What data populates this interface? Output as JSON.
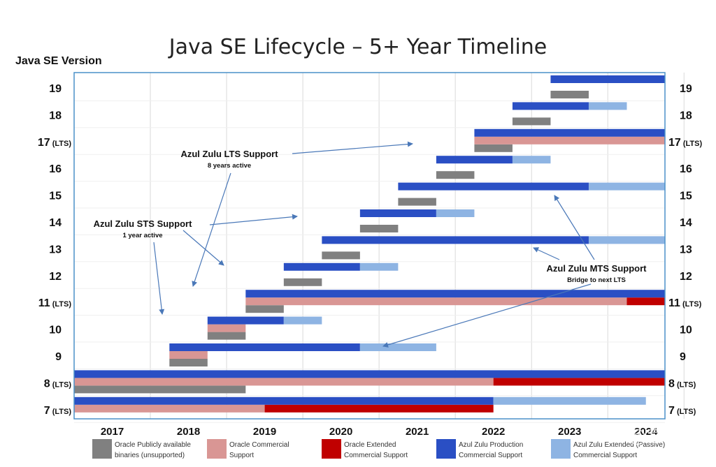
{
  "chart_data": {
    "type": "bar",
    "title": "Java SE Lifecycle – 5+ Year Timeline",
    "ylabel": "Java SE Version",
    "xlim": [
      2016.5,
      2024.25
    ],
    "years": [
      "2017",
      "2018",
      "2019",
      "2020",
      "2021",
      "2022",
      "2023",
      "2024"
    ],
    "versions": [
      {
        "label": "19",
        "suffix": "",
        "segments": [
          {
            "type": "zulu",
            "start": 2022.75,
            "end": 2024.25
          },
          {
            "type": "oracle_public",
            "start": 2022.75,
            "end": 2023.25
          }
        ]
      },
      {
        "label": "18",
        "suffix": "",
        "segments": [
          {
            "type": "zulu",
            "start": 2022.25,
            "end": 2023.25
          },
          {
            "type": "zulu_ext",
            "start": 2023.25,
            "end": 2023.75
          },
          {
            "type": "oracle_public",
            "start": 2022.25,
            "end": 2022.75
          }
        ]
      },
      {
        "label": "17",
        "suffix": "(LTS)",
        "segments": [
          {
            "type": "zulu",
            "start": 2021.75,
            "end": 2024.25
          },
          {
            "type": "oracle_comm",
            "start": 2021.75,
            "end": 2024.25
          },
          {
            "type": "oracle_public",
            "start": 2021.75,
            "end": 2022.25
          }
        ]
      },
      {
        "label": "16",
        "suffix": "",
        "segments": [
          {
            "type": "zulu",
            "start": 2021.25,
            "end": 2022.25
          },
          {
            "type": "zulu_ext",
            "start": 2022.25,
            "end": 2022.75
          },
          {
            "type": "oracle_public",
            "start": 2021.25,
            "end": 2021.75
          }
        ]
      },
      {
        "label": "15",
        "suffix": "",
        "segments": [
          {
            "type": "zulu",
            "start": 2020.75,
            "end": 2023.25
          },
          {
            "type": "zulu_ext",
            "start": 2023.25,
            "end": 2024.25
          },
          {
            "type": "oracle_public",
            "start": 2020.75,
            "end": 2021.25
          }
        ]
      },
      {
        "label": "14",
        "suffix": "",
        "segments": [
          {
            "type": "zulu",
            "start": 2020.25,
            "end": 2021.25
          },
          {
            "type": "zulu_ext",
            "start": 2021.25,
            "end": 2021.75
          },
          {
            "type": "oracle_public",
            "start": 2020.25,
            "end": 2020.75
          }
        ]
      },
      {
        "label": "13",
        "suffix": "",
        "segments": [
          {
            "type": "zulu",
            "start": 2019.75,
            "end": 2023.25
          },
          {
            "type": "zulu_ext",
            "start": 2023.25,
            "end": 2024.25
          },
          {
            "type": "oracle_public",
            "start": 2019.75,
            "end": 2020.25
          }
        ]
      },
      {
        "label": "12",
        "suffix": "",
        "segments": [
          {
            "type": "zulu",
            "start": 2019.25,
            "end": 2020.25
          },
          {
            "type": "zulu_ext",
            "start": 2020.25,
            "end": 2020.75
          },
          {
            "type": "oracle_public",
            "start": 2019.25,
            "end": 2019.75
          }
        ]
      },
      {
        "label": "11",
        "suffix": "(LTS)",
        "segments": [
          {
            "type": "zulu",
            "start": 2018.75,
            "end": 2024.25
          },
          {
            "type": "oracle_comm",
            "start": 2018.75,
            "end": 2023.75
          },
          {
            "type": "oracle_ext",
            "start": 2023.75,
            "end": 2024.25
          },
          {
            "type": "oracle_public",
            "start": 2018.75,
            "end": 2019.25
          }
        ]
      },
      {
        "label": "10",
        "suffix": "",
        "segments": [
          {
            "type": "zulu",
            "start": 2018.25,
            "end": 2019.25
          },
          {
            "type": "zulu_ext",
            "start": 2019.25,
            "end": 2019.75
          },
          {
            "type": "oracle_comm",
            "start": 2018.25,
            "end": 2018.75
          },
          {
            "type": "oracle_public",
            "start": 2018.25,
            "end": 2018.75
          }
        ]
      },
      {
        "label": "9",
        "suffix": "",
        "segments": [
          {
            "type": "zulu",
            "start": 2017.75,
            "end": 2020.25
          },
          {
            "type": "zulu_ext",
            "start": 2020.25,
            "end": 2021.25
          },
          {
            "type": "oracle_comm",
            "start": 2017.75,
            "end": 2018.25
          },
          {
            "type": "oracle_public",
            "start": 2017.75,
            "end": 2018.25
          }
        ]
      },
      {
        "label": "8",
        "suffix": "(LTS)",
        "segments": [
          {
            "type": "zulu",
            "start": 2016.5,
            "end": 2024.25
          },
          {
            "type": "oracle_comm",
            "start": 2016.5,
            "end": 2022.0
          },
          {
            "type": "oracle_ext",
            "start": 2022.0,
            "end": 2024.25
          },
          {
            "type": "oracle_public",
            "start": 2016.5,
            "end": 2018.75
          }
        ]
      },
      {
        "label": "7",
        "suffix": "(LTS)",
        "segments": [
          {
            "type": "zulu",
            "start": 2016.5,
            "end": 2022.0
          },
          {
            "type": "zulu_ext",
            "start": 2022.0,
            "end": 2024.0
          },
          {
            "type": "oracle_comm",
            "start": 2016.5,
            "end": 2019.0
          },
          {
            "type": "oracle_ext",
            "start": 2019.0,
            "end": 2022.0
          }
        ]
      }
    ],
    "colors": {
      "oracle_public": "#808080",
      "oracle_comm": "#d99694",
      "oracle_ext": "#c00000",
      "zulu": "#2a4fc4",
      "zulu_ext": "#8eb4e3",
      "frame": "#4a90c8",
      "grid": "#d9d9d9"
    },
    "legend": [
      {
        "type": "oracle_public",
        "line1": "Oracle Publicly available",
        "line2": "binaries (unsupported)"
      },
      {
        "type": "oracle_comm",
        "line1": "Oracle Commercial",
        "line2": "Support"
      },
      {
        "type": "oracle_ext",
        "line1": "Oracle Extended",
        "line2": "Commercial Support"
      },
      {
        "type": "zulu",
        "line1": "Azul Zulu Production",
        "line2": "Commercial Support"
      },
      {
        "type": "zulu_ext",
        "line1": "Azul Zulu Extended (Passive)",
        "line2": "Commercial Support"
      }
    ],
    "annotations": [
      {
        "title": "Azul Zulu LTS Support",
        "subtitle": "8 years active"
      },
      {
        "title": "Azul Zulu STS Support",
        "subtitle": "1 year active"
      },
      {
        "title": "Azul Zulu MTS Support",
        "subtitle": "Bridge to next LTS"
      }
    ],
    "watermark": "知乎 @常胖"
  }
}
